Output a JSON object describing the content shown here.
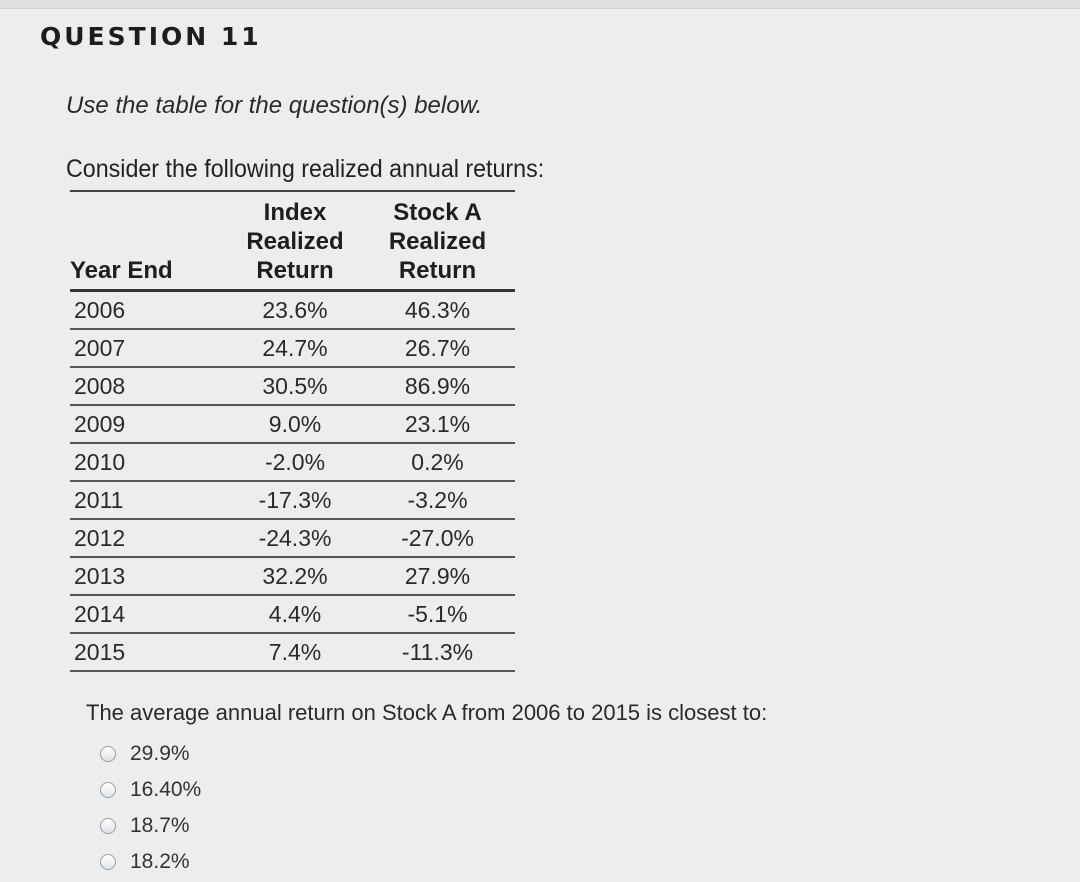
{
  "question": {
    "title": "QUESTION 11",
    "instruction": "Use the table for the question(s) below.",
    "intro": "Consider the following realized annual returns:"
  },
  "table": {
    "headers": {
      "year": "Year End",
      "index": [
        "Index",
        "Realized",
        "Return"
      ],
      "stock": [
        "Stock A",
        "Realized",
        "Return"
      ]
    },
    "rows": [
      {
        "year": "2006",
        "index": "23.6%",
        "stock": "46.3%"
      },
      {
        "year": "2007",
        "index": "24.7%",
        "stock": "26.7%"
      },
      {
        "year": "2008",
        "index": "30.5%",
        "stock": "86.9%"
      },
      {
        "year": "2009",
        "index": "9.0%",
        "stock": "23.1%"
      },
      {
        "year": "2010",
        "index": "-2.0%",
        "stock": "0.2%"
      },
      {
        "year": "2011",
        "index": "-17.3%",
        "stock": "-3.2%"
      },
      {
        "year": "2012",
        "index": "-24.3%",
        "stock": "-27.0%"
      },
      {
        "year": "2013",
        "index": "32.2%",
        "stock": "27.9%"
      },
      {
        "year": "2014",
        "index": "4.4%",
        "stock": "-5.1%"
      },
      {
        "year": "2015",
        "index": "7.4%",
        "stock": "-11.3%"
      }
    ]
  },
  "prompt": "The average annual return on Stock A from 2006 to 2015 is closest to:",
  "options": [
    {
      "label": "29.9%"
    },
    {
      "label": "16.40%"
    },
    {
      "label": "18.7%"
    },
    {
      "label": "18.2%"
    }
  ]
}
